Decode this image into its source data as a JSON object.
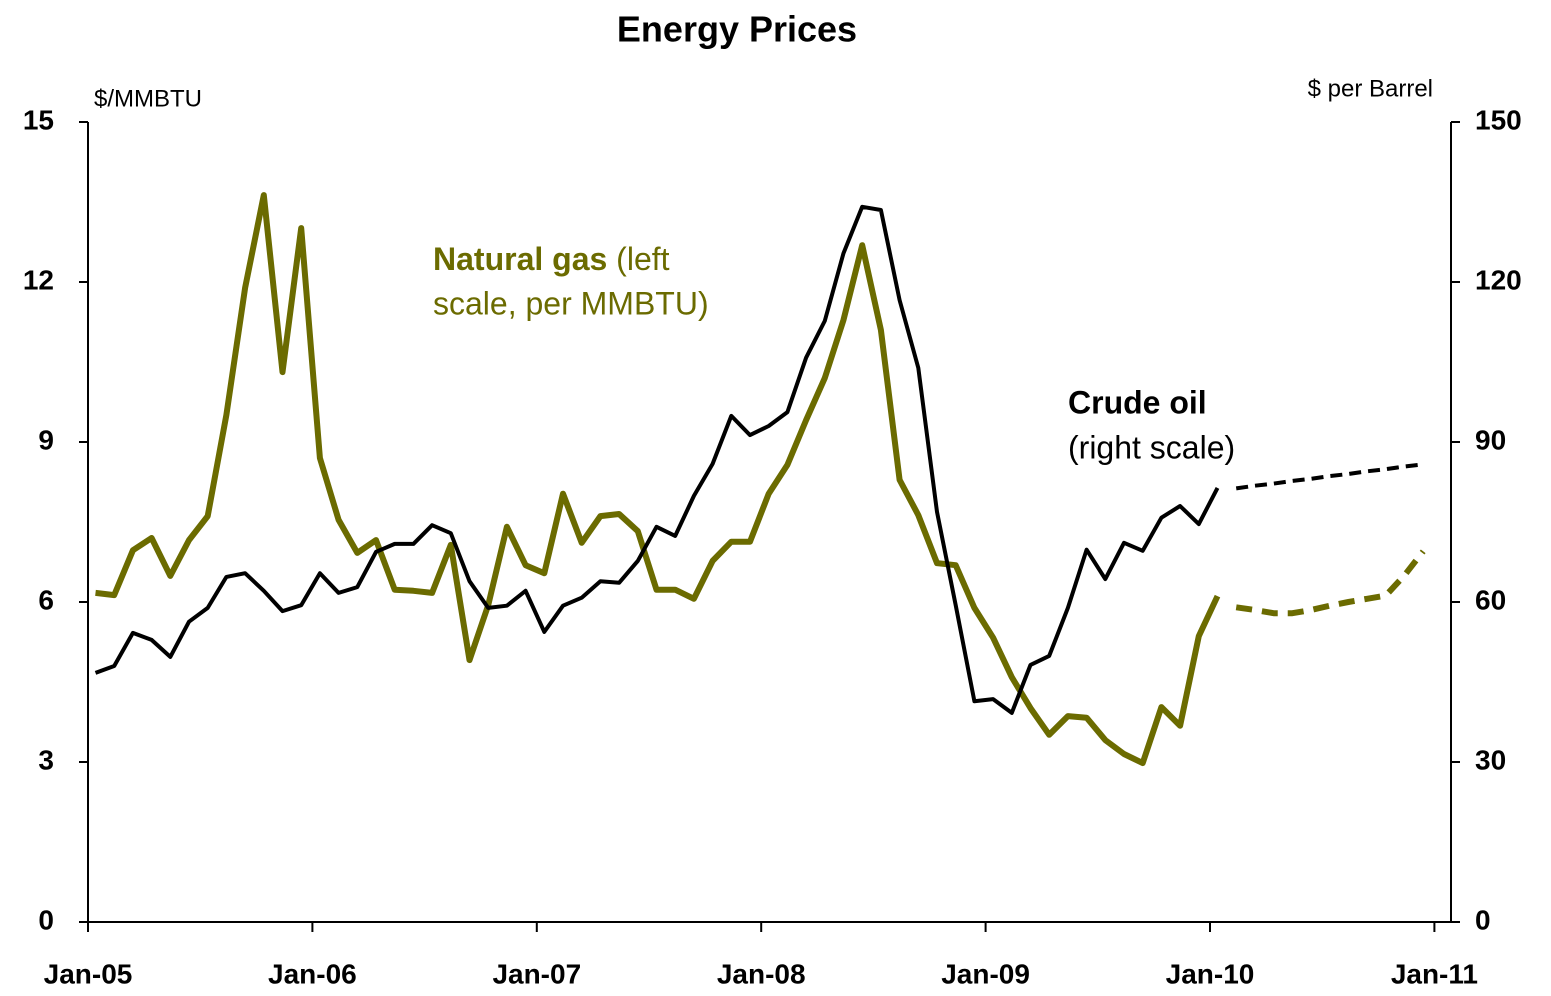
{
  "chart_data": {
    "type": "line",
    "title": "Energy Prices",
    "y_label": "$/MMBTU",
    "y2_label": "$ per Barrel",
    "annotations": [
      "Natural gas",
      "(left",
      "scale, per MMBTU)",
      "Crude oil",
      "(right scale)"
    ],
    "categories": [
      "Jan-05",
      null,
      null,
      null,
      null,
      null,
      null,
      null,
      null,
      null,
      null,
      null,
      "Jan-06",
      null,
      null,
      null,
      null,
      null,
      null,
      null,
      null,
      null,
      null,
      null,
      "Jan-07",
      null,
      null,
      null,
      null,
      null,
      null,
      null,
      null,
      null,
      null,
      null,
      "Jan-08",
      null,
      null,
      null,
      null,
      null,
      null,
      null,
      null,
      null,
      null,
      null,
      "Jan-09",
      null,
      null,
      null,
      null,
      null,
      null,
      null,
      null,
      null,
      null,
      null,
      "Jan-10",
      null,
      null,
      null,
      null,
      null,
      null,
      null,
      null,
      null,
      null,
      null,
      "Jan-11"
    ],
    "ylim": [
      0,
      15
    ],
    "yticks": [
      0,
      3,
      6,
      9,
      12,
      15
    ],
    "y2lim": [
      0,
      150
    ],
    "y2ticks": [
      0,
      30,
      60,
      90,
      120,
      150
    ],
    "series": [
      {
        "color": "#6b6b00",
        "axis": "y",
        "dashed": false,
        "values": [
          6.17,
          6.13,
          6.97,
          7.2,
          6.49,
          7.16,
          7.61,
          9.51,
          11.89,
          13.63,
          10.31,
          13.01,
          8.7,
          7.54,
          6.92,
          7.16,
          6.23,
          6.21,
          6.17,
          7.07,
          4.91,
          5.94,
          7.41,
          6.69,
          6.54,
          8.03,
          7.11,
          7.61,
          7.65,
          7.33,
          6.23,
          6.23,
          6.06,
          6.77,
          7.13,
          7.13,
          8.03,
          8.57,
          9.41,
          10.2,
          11.29,
          12.69,
          11.1,
          8.29,
          7.63,
          6.73,
          6.69,
          5.89,
          5.33,
          4.59,
          4.01,
          3.51,
          3.86,
          3.83,
          3.41,
          3.15,
          2.98,
          4.03,
          3.68,
          5.36,
          6.11,
          null,
          null,
          null,
          null,
          null,
          null,
          null,
          null,
          null,
          null,
          null,
          null
        ]
      },
      {
        "color": "#6b6b00",
        "axis": "y",
        "dashed": true,
        "values": [
          null,
          null,
          null,
          null,
          null,
          null,
          null,
          null,
          null,
          null,
          null,
          null,
          null,
          null,
          null,
          null,
          null,
          null,
          null,
          null,
          null,
          null,
          null,
          null,
          null,
          null,
          null,
          null,
          null,
          null,
          null,
          null,
          null,
          null,
          null,
          null,
          null,
          null,
          null,
          null,
          null,
          null,
          null,
          null,
          null,
          null,
          null,
          null,
          null,
          null,
          null,
          null,
          null,
          null,
          null,
          null,
          null,
          null,
          null,
          null,
          null,
          5.9,
          5.85,
          5.79,
          5.79,
          5.85,
          5.93,
          6.0,
          6.06,
          6.12,
          6.5,
          6.95,
          null
        ]
      },
      {
        "color": "#000000",
        "axis": "y2",
        "dashed": false,
        "values": [
          46.7,
          48.0,
          54.2,
          52.9,
          49.7,
          56.3,
          58.9,
          64.7,
          65.4,
          62.1,
          58.3,
          59.4,
          65.4,
          61.7,
          62.8,
          69.4,
          70.9,
          70.9,
          74.4,
          72.9,
          63.9,
          58.9,
          59.3,
          62.1,
          54.4,
          59.3,
          60.8,
          63.9,
          63.6,
          67.7,
          74.1,
          72.4,
          79.9,
          85.9,
          94.9,
          91.3,
          93.0,
          95.6,
          105.8,
          112.7,
          125.4,
          134.1,
          133.5,
          116.6,
          103.9,
          76.9,
          59.4,
          41.4,
          41.8,
          39.2,
          48.2,
          49.9,
          58.9,
          69.8,
          64.3,
          71.1,
          69.6,
          75.8,
          78.0,
          74.6,
          81.4,
          null,
          null,
          null,
          null,
          null,
          null,
          null,
          null,
          null,
          null,
          null,
          null
        ]
      },
      {
        "color": "#000000",
        "axis": "y2",
        "dashed": true,
        "values": [
          null,
          null,
          null,
          null,
          null,
          null,
          null,
          null,
          null,
          null,
          null,
          null,
          null,
          null,
          null,
          null,
          null,
          null,
          null,
          null,
          null,
          null,
          null,
          null,
          null,
          null,
          null,
          null,
          null,
          null,
          null,
          null,
          null,
          null,
          null,
          null,
          null,
          null,
          null,
          null,
          null,
          null,
          null,
          null,
          null,
          null,
          null,
          null,
          null,
          null,
          null,
          null,
          null,
          null,
          null,
          null,
          null,
          null,
          null,
          null,
          null,
          81.3,
          81.8,
          82.2,
          82.7,
          83.1,
          83.6,
          84.0,
          84.5,
          84.9,
          85.4,
          85.8,
          null
        ]
      }
    ]
  }
}
